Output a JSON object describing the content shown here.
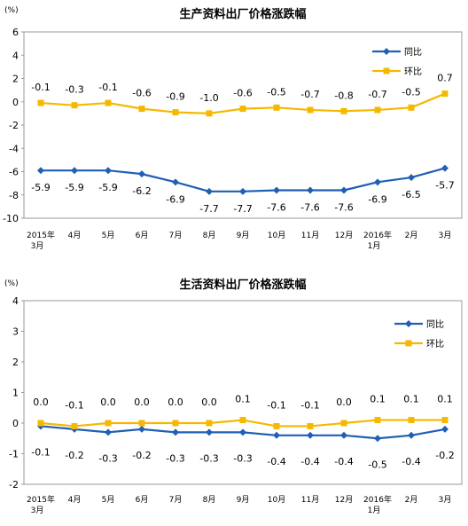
{
  "chart_data": [
    {
      "type": "line",
      "title": "生产资料出厂价格涨跌幅",
      "unit": "(%)",
      "categories": [
        "2015年3月",
        "4月",
        "5月",
        "6月",
        "7月",
        "8月",
        "9月",
        "10月",
        "11月",
        "12月",
        "2016年1月",
        "2月",
        "3月"
      ],
      "ylim": [
        -10,
        6
      ],
      "yticks": [
        6,
        4,
        2,
        0,
        -2,
        -4,
        -6,
        -8,
        -10
      ],
      "grid": false,
      "legend_position": "top-right",
      "series": [
        {
          "name": "同比",
          "color": "#1f5fb4",
          "marker": "diamond",
          "values": [
            -5.9,
            -5.9,
            -5.9,
            -6.2,
            -6.9,
            -7.7,
            -7.7,
            -7.6,
            -7.6,
            -7.6,
            -6.9,
            -6.5,
            -5.7
          ],
          "labels": [
            "-5.9",
            "-5.9",
            "-5.9",
            "-6.2",
            "-6.9",
            "-7.7",
            "-7.7",
            "-7.6",
            "-7.6",
            "-7.6",
            "-6.9",
            "-6.5",
            "-5.7"
          ]
        },
        {
          "name": "环比",
          "color": "#f5b800",
          "marker": "square",
          "values": [
            -0.1,
            -0.3,
            -0.1,
            -0.6,
            -0.9,
            -1.0,
            -0.6,
            -0.5,
            -0.7,
            -0.8,
            -0.7,
            -0.5,
            0.7
          ],
          "labels": [
            "-0.1",
            "-0.3",
            "-0.1",
            "-0.6",
            "-0.9",
            "-1.0",
            "-0.6",
            "-0.5",
            "-0.7",
            "-0.8",
            "-0.7",
            "-0.5",
            "0.7"
          ]
        }
      ]
    },
    {
      "type": "line",
      "title": "生活资料出厂价格涨跌幅",
      "unit": "(%)",
      "categories": [
        "2015年3月",
        "4月",
        "5月",
        "6月",
        "7月",
        "8月",
        "9月",
        "10月",
        "11月",
        "12月",
        "2016年1月",
        "2月",
        "3月"
      ],
      "ylim": [
        -2,
        4
      ],
      "yticks": [
        4,
        3,
        2,
        1,
        0,
        -1,
        -2
      ],
      "grid": false,
      "legend_position": "top-right",
      "series": [
        {
          "name": "同比",
          "color": "#1f5fb4",
          "marker": "diamond",
          "values": [
            -0.1,
            -0.2,
            -0.3,
            -0.2,
            -0.3,
            -0.3,
            -0.3,
            -0.4,
            -0.4,
            -0.4,
            -0.5,
            -0.4,
            -0.2
          ],
          "labels": [
            "-0.1",
            "-0.2",
            "-0.3",
            "-0.2",
            "-0.3",
            "-0.3",
            "-0.3",
            "-0.4",
            "-0.4",
            "-0.4",
            "-0.5",
            "-0.4",
            "-0.2"
          ]
        },
        {
          "name": "环比",
          "color": "#f5b800",
          "marker": "square",
          "values": [
            0.0,
            -0.1,
            0.0,
            0.0,
            0.0,
            0.0,
            0.1,
            -0.1,
            -0.1,
            0.0,
            0.1,
            0.1,
            0.1
          ],
          "labels": [
            "0.0",
            "-0.1",
            "0.0",
            "0.0",
            "0.0",
            "0.0",
            "0.1",
            "-0.1",
            "-0.1",
            "0.0",
            "0.1",
            "0.1",
            "0.1"
          ]
        }
      ]
    }
  ]
}
